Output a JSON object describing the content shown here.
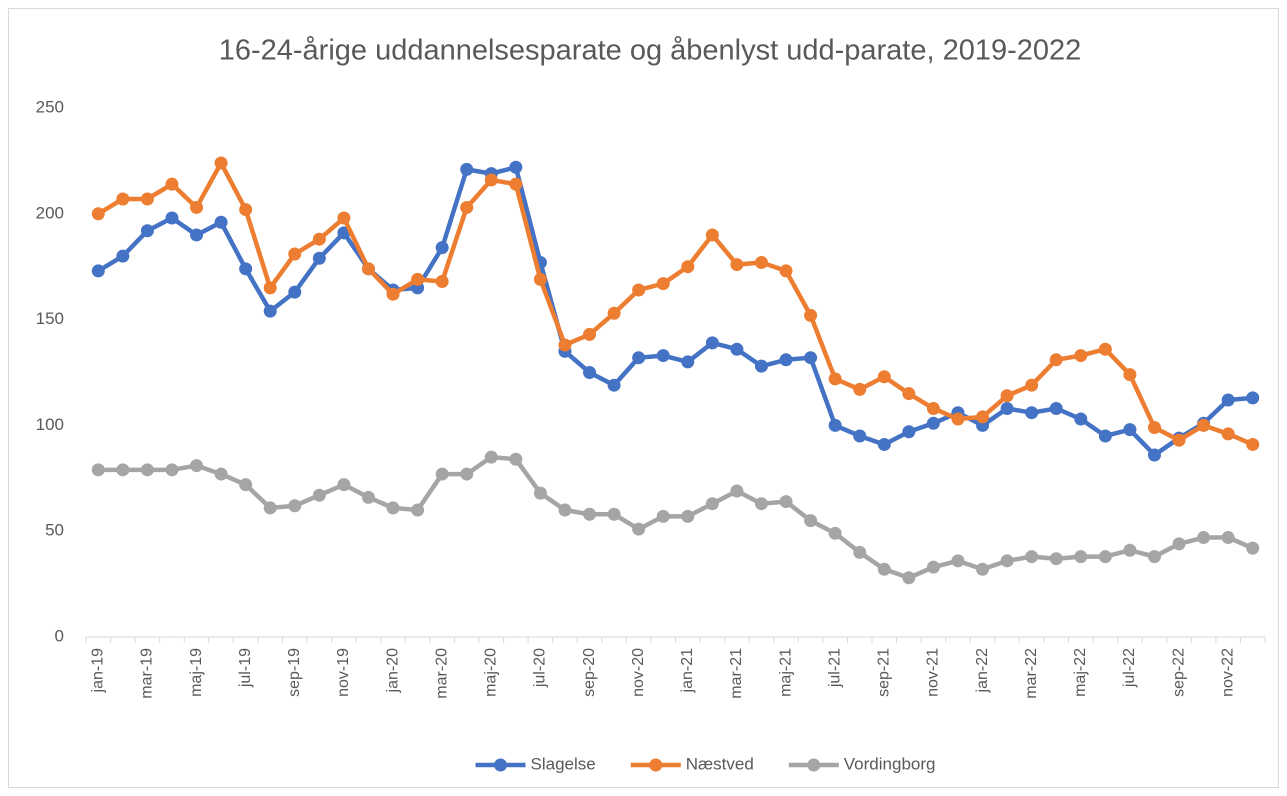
{
  "chart_data": {
    "type": "line",
    "title": "16-24-årige uddannelsesparate og åbenlyst udd-parate, 2019-2022",
    "categories": [
      "jan-19",
      null,
      "mar-19",
      null,
      "maj-19",
      null,
      "jul-19",
      null,
      "sep-19",
      null,
      "nov-19",
      null,
      "jan-20",
      null,
      "mar-20",
      null,
      "maj-20",
      null,
      "jul-20",
      null,
      "sep-20",
      null,
      "nov-20",
      null,
      "jan-21",
      null,
      "mar-21",
      null,
      "maj-21",
      null,
      "jul-21",
      null,
      "sep-21",
      null,
      "nov-21",
      null,
      "jan-22",
      null,
      "mar-22",
      null,
      "maj-22",
      null,
      "jul-22",
      null,
      "sep-22",
      null,
      "nov-22",
      null
    ],
    "series": [
      {
        "name": "Slagelse",
        "color": "#4472c4",
        "values": [
          173,
          180,
          192,
          198,
          190,
          196,
          174,
          154,
          163,
          179,
          191,
          174,
          164,
          165,
          184,
          221,
          219,
          222,
          177,
          135,
          125,
          119,
          132,
          133,
          130,
          139,
          136,
          128,
          131,
          132,
          100,
          95,
          91,
          97,
          101,
          106,
          100,
          108,
          106,
          108,
          103,
          95,
          98,
          86,
          94,
          101,
          112,
          113
        ]
      },
      {
        "name": "Næstved",
        "color": "#ed7d31",
        "values": [
          200,
          207,
          207,
          214,
          203,
          224,
          202,
          165,
          181,
          188,
          198,
          174,
          162,
          169,
          168,
          203,
          216,
          214,
          169,
          138,
          143,
          153,
          164,
          167,
          175,
          190,
          176,
          177,
          173,
          152,
          122,
          117,
          123,
          115,
          108,
          103,
          104,
          114,
          119,
          131,
          133,
          136,
          124,
          99,
          93,
          100,
          96,
          91
        ]
      },
      {
        "name": "Vordingborg",
        "color": "#a5a5a5",
        "values": [
          79,
          79,
          79,
          79,
          81,
          77,
          72,
          61,
          62,
          67,
          72,
          66,
          61,
          60,
          77,
          77,
          85,
          84,
          68,
          60,
          58,
          58,
          51,
          57,
          57,
          63,
          69,
          63,
          64,
          55,
          49,
          40,
          32,
          28,
          33,
          36,
          32,
          36,
          38,
          37,
          38,
          38,
          41,
          38,
          44,
          47,
          47,
          42
        ]
      }
    ],
    "ylim": [
      0,
      250
    ],
    "yticks": [
      0,
      50,
      100,
      150,
      200,
      250
    ],
    "grid": false,
    "legend": "bottom"
  }
}
